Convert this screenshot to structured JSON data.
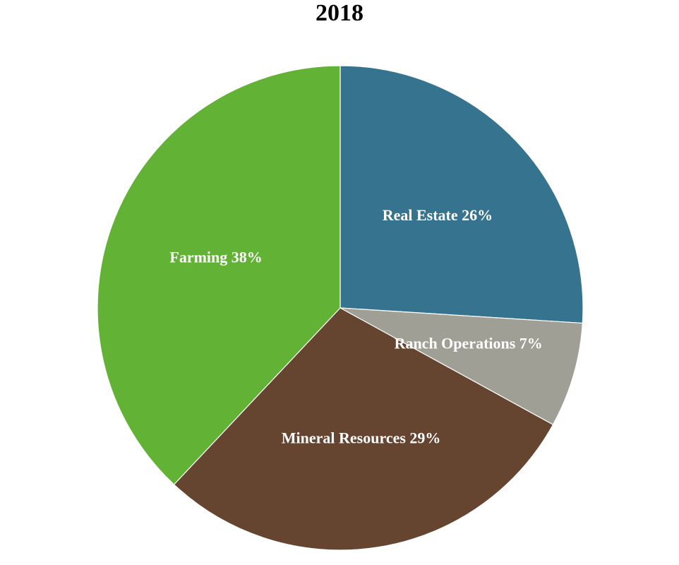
{
  "chart_data": {
    "type": "pie",
    "title": "2018",
    "slices": [
      {
        "label": "Real Estate",
        "value": 26,
        "display": "Real Estate 26%",
        "color": "#35738f"
      },
      {
        "label": "Ranch Operations",
        "value": 7,
        "display": "Ranch Operations 7%",
        "color": "#a09f96"
      },
      {
        "label": "Mineral Resources",
        "value": 29,
        "display": "Mineral Resources 29%",
        "color": "#654430"
      },
      {
        "label": "Farming",
        "value": 38,
        "display": "Farming 38%",
        "color": "#62b236"
      }
    ],
    "start_angle": "12 o'clock",
    "direction": "clockwise",
    "legend": "none"
  }
}
